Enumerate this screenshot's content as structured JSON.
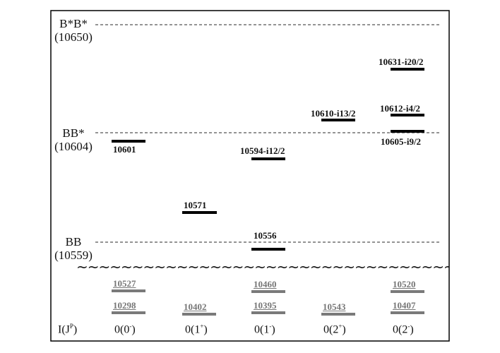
{
  "thresholds": [
    {
      "name": "B*B*",
      "mass": "(10650)"
    },
    {
      "name": "BB*",
      "mass": "(10604)"
    },
    {
      "name": "BB",
      "mass": "(10559)"
    }
  ],
  "wave": "~~~~~~~~~~~~~~~~~~~~~~~~~~~~~~~~~~~~~~~~",
  "upper_levels": [
    {
      "col": "0(0-)",
      "label": "10601"
    },
    {
      "col": "0(1+)",
      "label": "10571"
    },
    {
      "col": "0(1-)",
      "label": "10594-i12/2"
    },
    {
      "col": "0(1-)",
      "label": "10556"
    },
    {
      "col": "0(2+)",
      "label": "10610-i13/2"
    },
    {
      "col": "0(2-)",
      "label": "10631-i20/2"
    },
    {
      "col": "0(2-)",
      "label": "10612-i4/2"
    },
    {
      "col": "0(2-)",
      "label": "10605-i9/2"
    }
  ],
  "lower_levels": [
    {
      "col": "0(0-)",
      "label": "10527"
    },
    {
      "col": "0(0-)",
      "label": "10298"
    },
    {
      "col": "0(1+)",
      "label": "10402"
    },
    {
      "col": "0(1-)",
      "label": "10460"
    },
    {
      "col": "0(1-)",
      "label": "10395"
    },
    {
      "col": "0(2+)",
      "label": "10543"
    },
    {
      "col": "0(2-)",
      "label": "10520"
    },
    {
      "col": "0(2-)",
      "label": "10407"
    }
  ],
  "axis": {
    "row_label": "I(J",
    "row_label_sup": "P",
    "row_label_end": ")",
    "columns": [
      {
        "main": "0(0",
        "sup": "-",
        "end": ")"
      },
      {
        "main": "0(1",
        "sup": "+",
        "end": ")"
      },
      {
        "main": "0(1",
        "sup": "-",
        "end": ")"
      },
      {
        "main": "0(2",
        "sup": "+",
        "end": ")"
      },
      {
        "main": "0(2",
        "sup": "-",
        "end": ")"
      }
    ]
  },
  "colors": {
    "frame": "#000000",
    "threshold_line": "#555555",
    "upper_bar": "#000000",
    "lower_bar": "#7a7a7a"
  }
}
